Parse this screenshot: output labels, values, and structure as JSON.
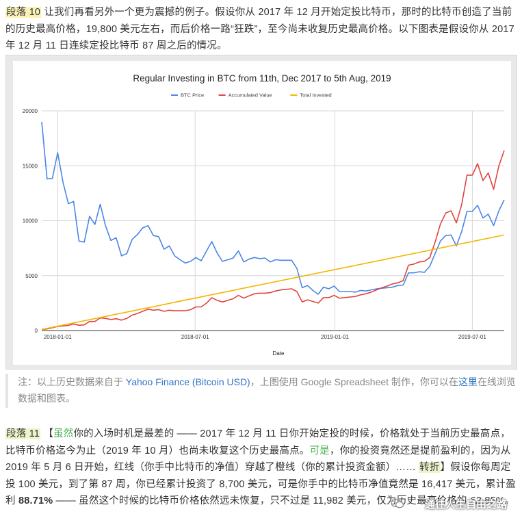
{
  "paragraph10": {
    "tag": "段落 10",
    "text": " 让我们再看另外一个更为震撼的例子。假设你从 2017 年 12 月开始定投比特币，那时的比特币创造了当前的历史最高价格，19,800 美元左右，而后价格一路“狂跌”，至今尚未收复历史最高价格。以下图表是假设你从 2017 年 12 月 11 日连续定投比特币 87 周之后的情况。"
  },
  "chart_data": {
    "type": "line",
    "title": "Regular Investing in BTC from 11th, Dec 2017 to 5th Aug, 2019",
    "xlabel": "Date",
    "ylabel": "",
    "ylim": [
      0,
      20000
    ],
    "yticks": [
      "0",
      "5000",
      "10000",
      "15000",
      "20000"
    ],
    "xticks": [
      "2018-01-01",
      "2018-07-01",
      "2019-01-01",
      "2019-07-01"
    ],
    "grid": true,
    "legend_position": "top",
    "x_start": "2017-12-11",
    "x_step_days": 7,
    "series": [
      {
        "name": "BTC Price",
        "color": "#4a86e8",
        "values": [
          19000,
          13800,
          13850,
          16200,
          13500,
          11550,
          11750,
          8150,
          8050,
          10400,
          9650,
          11500,
          9550,
          8200,
          8450,
          6800,
          7000,
          8300,
          8750,
          9350,
          9550,
          8650,
          8550,
          7400,
          7700,
          6800,
          6450,
          6150,
          6300,
          6650,
          6350,
          7250,
          8100,
          7050,
          6300,
          6450,
          6600,
          7250,
          6250,
          6500,
          6650,
          6550,
          6600,
          6250,
          6450,
          6400,
          6400,
          6400,
          5650,
          3900,
          4100,
          3650,
          3300,
          3950,
          3800,
          4050,
          3550,
          3550,
          3550,
          3500,
          3650,
          3600,
          3700,
          3800,
          3850,
          3900,
          3950,
          4100,
          4150,
          5250,
          5250,
          5350,
          5300,
          5850,
          7000,
          8150,
          8650,
          8700,
          7700,
          9000,
          10850,
          10850,
          11400,
          10250,
          10600,
          9550,
          10900,
          11900
        ]
      },
      {
        "name": "Accumulated Value",
        "color": "#e0443e",
        "values": [
          100,
          150,
          250,
          380,
          420,
          470,
          600,
          480,
          520,
          830,
          820,
          1150,
          1100,
          1000,
          1080,
          950,
          1100,
          1400,
          1550,
          1750,
          1950,
          1850,
          1900,
          1750,
          1850,
          1800,
          1800,
          1800,
          1900,
          2150,
          2150,
          2500,
          3000,
          2750,
          2600,
          2750,
          2900,
          3200,
          2950,
          3150,
          3350,
          3400,
          3400,
          3450,
          3600,
          3700,
          3750,
          3800,
          3550,
          2600,
          2800,
          2650,
          2500,
          3000,
          3000,
          3200,
          2950,
          3000,
          3050,
          3100,
          3250,
          3350,
          3500,
          3700,
          3900,
          4050,
          4250,
          4350,
          4550,
          5950,
          6050,
          6250,
          6300,
          6650,
          8050,
          9700,
          10700,
          10900,
          9800,
          11450,
          14150,
          14150,
          15200,
          13650,
          14350,
          12850,
          15000,
          16400
        ]
      },
      {
        "name": "Total Invested",
        "color": "#f4b400",
        "values": [
          100,
          8700
        ]
      }
    ]
  },
  "note": {
    "prefix": "注：以上历史数据来自于 ",
    "link1": "Yahoo Finance (Bitcoin USD)",
    "middle": "，上图使用 Google Spreadsheet 制作，你可以在",
    "link2": "这里",
    "suffix": "在线浏览数据和图表。"
  },
  "paragraph11": {
    "tag": "段落 11",
    "open_bracket": " 【",
    "word1": "虽然",
    "text1": "你的入场时机是最差的 —— 2017 年 12 月 11 日你开始定投的时候，价格就处于当前历史最高点，比特币价格迄今为止（2019 年 10 月）也尚未收复这个历史最高点。",
    "word2": "可是",
    "text2": "，你的投资竟然还是提前盈利的，因为从 2019 年 5 月 6 日开始，红线（你手中比特币的净值）穿越了橙线（你的累计投资金额）…… ",
    "word3": "转折",
    "close_bracket": "】",
    "text3": "假设你每周定投 100 美元，到了第 87 周，你已经累计投资了 8,700 美元，可是你手中的比特币净值竟然是 16,417 美元，累计盈利 ",
    "profit": "88.71%",
    "text4": " —— 虽然这个时候的比特币价格依然远未恢复，只不过是 11,982 美元，仅为历史最高价格的 ",
    "ratio": "62.85%",
    "end": "。"
  },
  "watermark": {
    "text": "通往人生自由之路"
  }
}
